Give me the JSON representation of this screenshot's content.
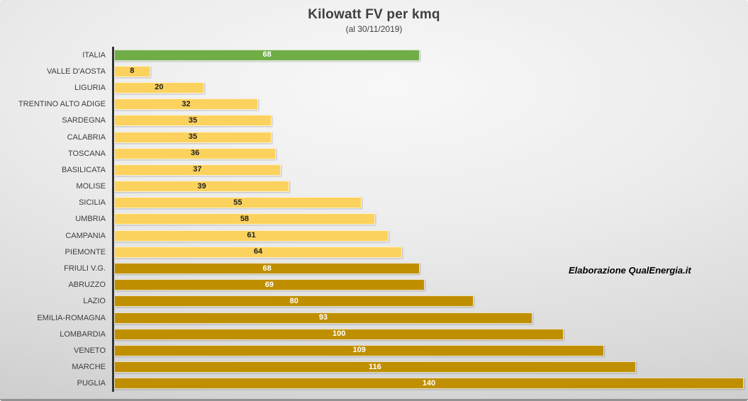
{
  "title": "Kilowatt FV per kmq",
  "subtitle": "(al 30/11/2019)",
  "annotation": "Elaborazione QualEnergia.it",
  "palette": {
    "green": "#70AD47",
    "light": "#FCD25E",
    "dark": "#BF8F00"
  },
  "label_colors": {
    "green": "#FFFFFF",
    "light": "#1F1F1F",
    "dark": "#FFFFFF"
  },
  "chart_data": {
    "type": "bar",
    "orientation": "horizontal",
    "title": "Kilowatt FV per kmq",
    "subtitle": "(al 30/11/2019)",
    "xlabel": "",
    "ylabel": "",
    "xlim": [
      0,
      140
    ],
    "grid": false,
    "legend": false,
    "categories": [
      "ITALIA",
      "VALLE D'AOSTA",
      "LIGURIA",
      "TRENTINO ALTO ADIGE",
      "SARDEGNA",
      "CALABRIA",
      "TOSCANA",
      "BASILICATA",
      "MOLISE",
      "SICILIA",
      "UMBRIA",
      "CAMPANIA",
      "PIEMONTE",
      "FRIULI V.G.",
      "ABRUZZO",
      "LAZIO",
      "EMILIA-ROMAGNA",
      "LOMBARDIA",
      "VENETO",
      "MARCHE",
      "PUGLIA"
    ],
    "values": [
      68,
      8,
      20,
      32,
      35,
      35,
      36,
      37,
      39,
      55,
      58,
      61,
      64,
      68,
      69,
      80,
      93,
      100,
      109,
      116,
      140
    ],
    "bar_styles": [
      "green",
      "light",
      "light",
      "light",
      "light",
      "light",
      "light",
      "light",
      "light",
      "light",
      "light",
      "light",
      "light",
      "dark",
      "dark",
      "dark",
      "dark",
      "dark",
      "dark",
      "dark",
      "dark"
    ]
  }
}
